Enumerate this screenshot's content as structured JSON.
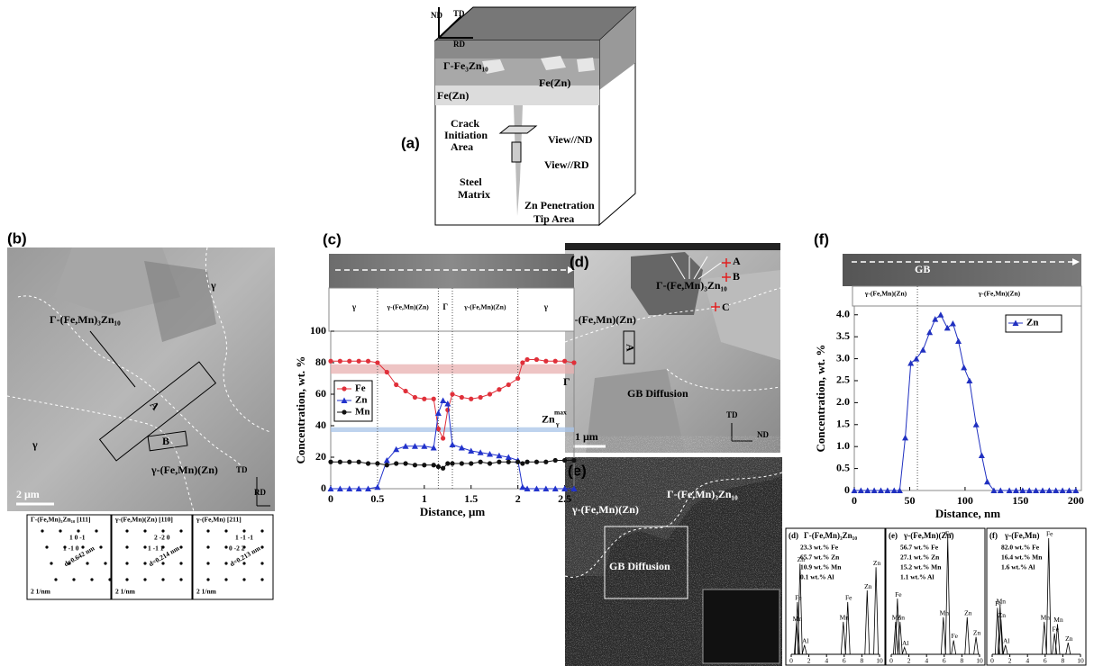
{
  "panel_a": {
    "label": "(a)",
    "nd": "ND",
    "td": "TD",
    "rd": "RD",
    "gamma_phase": "Γ-Fe₃Zn₁₀",
    "fezn_1": "Fe(Zn)",
    "fezn_2": "Fe(Zn)",
    "crack": [
      "Crack",
      "Initiation",
      "Area"
    ],
    "view_nd": "View//ND",
    "view_rd": "View//RD",
    "matrix": [
      "Steel",
      "Matrix"
    ],
    "tip": [
      "Zn Penetration",
      "Tip Area"
    ]
  },
  "panel_b": {
    "label": "(b)",
    "gamma_1": "γ",
    "gamma_2": "γ",
    "gamma_phase": "Γ-(Fe,Mn)₃Zn₁₀",
    "box_a": "A",
    "box_b": "B",
    "matrix_phase": "γ-(Fe,Mn)(Zn)",
    "td": "TD",
    "rd": "RD",
    "scale": "2 μm",
    "saed": [
      {
        "title": "Γ-(Fe,Mn)₃Zn₁₀ [111]",
        "scale": "2 1/nm",
        "spots": [
          "1 0 -1",
          "1 -1 0"
        ],
        "d": "d=0.642 nm"
      },
      {
        "title": "γ-(Fe,Mn)(Zn) [110]",
        "scale": "2 1/nm",
        "spots": [
          "2 -2 0",
          "1 -1 1"
        ],
        "d": "d=0.214 nm"
      },
      {
        "title": "γ-(Fe,Mn) [211]",
        "scale": "2 1/nm",
        "spots": [
          "1 -1 -1",
          "0 -2 2"
        ],
        "d": "d=0.213 nm"
      }
    ]
  },
  "panel_d": {
    "label": "(d)",
    "gamma_phase": "Γ-(Fe,Mn)₃Zn₁₀",
    "point_a": "A",
    "point_b": "B",
    "point_c": "C",
    "matrix_phase": "γ-(Fe,Mn)(Zn)",
    "box_a": "A",
    "gb": "GB Diffusion",
    "scale": "1 μm",
    "td": "TD",
    "nd": "ND"
  },
  "panel_e": {
    "label": "(e)",
    "gamma_phase": "Γ-(Fe,Mn)₃Zn₁₀",
    "matrix_phase": "γ-(Fe,Mn)(Zn)",
    "gb": "GB Diffusion"
  },
  "chart_data": [
    {
      "type": "line",
      "label": "(c)",
      "xlabel": "Distance, μm",
      "ylabel": "Concentration, wt. %",
      "phases": [
        "γ",
        "γ-(Fe,Mn)(Zn)",
        "Γ",
        "γ-(Fe,Mn)(Zn)",
        "γ"
      ],
      "boundaries": [
        0.5,
        1.15,
        1.3,
        2.0
      ],
      "bands": [
        {
          "label": "Γ",
          "range": [
            73,
            79
          ],
          "color": "#e8b0b0"
        },
        {
          "label": "Zn",
          "superscript": "max",
          "subscript": "γ",
          "range": [
            36,
            39
          ],
          "color": "#a8c4e8"
        }
      ],
      "x": [
        0,
        0.1,
        0.2,
        0.3,
        0.4,
        0.5,
        0.6,
        0.7,
        0.8,
        0.9,
        1.0,
        1.1,
        1.15,
        1.2,
        1.25,
        1.3,
        1.4,
        1.5,
        1.6,
        1.7,
        1.8,
        1.9,
        2.0,
        2.05,
        2.1,
        2.2,
        2.3,
        2.4,
        2.5,
        2.6
      ],
      "xlim": [
        0,
        2.6
      ],
      "xticks": [
        0,
        0.5,
        1,
        1.5,
        2,
        2.5
      ],
      "ylim": [
        0,
        100
      ],
      "yticks": [
        0,
        20,
        40,
        60,
        80,
        100
      ],
      "legend": "center left",
      "series": [
        {
          "name": "Fe",
          "color": "#e0303a",
          "marker": "circle",
          "values": [
            81,
            81,
            81,
            81,
            81,
            80,
            74,
            66,
            62,
            58,
            57,
            57,
            38,
            32,
            50,
            60,
            58,
            57,
            58,
            60,
            63,
            66,
            70,
            80,
            82,
            82,
            81,
            81,
            81,
            80
          ]
        },
        {
          "name": "Zn",
          "color": "#2233cc",
          "marker": "triangle",
          "values": [
            0,
            0,
            0,
            0,
            0,
            1,
            18,
            25,
            27,
            27,
            27,
            26,
            48,
            56,
            54,
            28,
            26,
            24,
            23,
            22,
            21,
            20,
            18,
            1,
            0,
            0,
            0,
            0,
            0,
            0
          ]
        },
        {
          "name": "Mn",
          "color": "#111111",
          "marker": "circle",
          "values": [
            17,
            17,
            17,
            17,
            16,
            16,
            15,
            16,
            16,
            15,
            15,
            15,
            14,
            13,
            16,
            16,
            16,
            16,
            17,
            16,
            17,
            17,
            17,
            16,
            17,
            17,
            17,
            18,
            18,
            18
          ]
        }
      ]
    },
    {
      "type": "line",
      "label": "(f)",
      "xlabel": "Distance, nm",
      "ylabel": "Concentration, wt. %",
      "strip_label": "GB",
      "phases": [
        "γ-(Fe,Mn)(Zn)",
        "γ-(Fe,Mn)(Zn)"
      ],
      "boundaries": [
        57
      ],
      "x": [
        0,
        6,
        12,
        18,
        24,
        30,
        36,
        41,
        46,
        51,
        56,
        62,
        68,
        73,
        78,
        84,
        89,
        94,
        99,
        104,
        110,
        115,
        120,
        126,
        132,
        140,
        146,
        152,
        158,
        164,
        170,
        176,
        182,
        188,
        194,
        200
      ],
      "xlim": [
        0,
        205
      ],
      "xticks": [
        0,
        50,
        100,
        150,
        200
      ],
      "ylim": [
        0,
        4.2
      ],
      "yticks": [
        0,
        0.5,
        {
          "value": 1,
          "label": "1.0"
        },
        1.5,
        {
          "value": 2,
          "label": "2.0"
        },
        2.5,
        {
          "value": 3,
          "label": "3.0"
        },
        3.5,
        {
          "value": 4,
          "label": "4.0"
        }
      ],
      "legend": "upper right",
      "series": [
        {
          "name": "Zn",
          "color": "#2030c0",
          "marker": "triangle",
          "values": [
            0,
            0,
            0,
            0,
            0,
            0,
            0,
            0,
            1.2,
            2.9,
            3.0,
            3.2,
            3.6,
            3.9,
            4.0,
            3.7,
            3.8,
            3.4,
            2.8,
            2.5,
            1.5,
            0.8,
            0.2,
            0,
            0,
            0,
            0,
            0,
            0,
            0,
            0,
            0,
            0,
            0,
            0,
            0
          ]
        }
      ]
    },
    {
      "type": "spectrum",
      "label": "(d)",
      "title": "Γ-(Fe,Mn)₃Zn₁₀",
      "composition": [
        "23.3 wt.% Fe",
        "65.7 wt.% Zn",
        "10.9 wt.% Mn",
        "0.1 wt.% Al"
      ],
      "xlim": [
        0,
        10
      ],
      "xticks": [
        0,
        2,
        4,
        6,
        8,
        10
      ],
      "peaks": [
        {
          "label": "Zn",
          "energy": 1.0,
          "height": 78
        },
        {
          "label": "Fe",
          "energy": 0.7,
          "height": 45
        },
        {
          "label": "Mn",
          "energy": 0.6,
          "height": 27
        },
        {
          "label": "Al",
          "energy": 1.5,
          "height": 8
        },
        {
          "label": "Mn",
          "energy": 5.9,
          "height": 28
        },
        {
          "label": "Fe",
          "energy": 6.4,
          "height": 45
        },
        {
          "label": "Zn",
          "energy": 8.6,
          "height": 55
        },
        {
          "label": "Zn",
          "energy": 9.6,
          "height": 75
        }
      ]
    },
    {
      "type": "spectrum",
      "label": "(e)",
      "title": "γ-(Fe,Mn)(Zn)",
      "composition": [
        "56.7 wt.% Fe",
        "27.1 wt.% Zn",
        "15.2 wt.% Mn",
        "1.1 wt.% Al"
      ],
      "xlim": [
        0,
        10
      ],
      "xticks": [
        0,
        2,
        4,
        6,
        8,
        10
      ],
      "peaks": [
        {
          "label": "Fe",
          "energy": 0.7,
          "height": 48
        },
        {
          "label": "Mn",
          "energy": 0.5,
          "height": 28
        },
        {
          "label": "Zn",
          "energy": 1.0,
          "height": 28
        },
        {
          "label": "Al",
          "energy": 1.5,
          "height": 6
        },
        {
          "label": "Mn",
          "energy": 5.9,
          "height": 32
        },
        {
          "label": "Fe",
          "energy": 6.4,
          "height": 100
        },
        {
          "label": "Fe",
          "energy": 7.06,
          "height": 12
        },
        {
          "label": "Zn",
          "energy": 8.6,
          "height": 32
        },
        {
          "label": "Zn",
          "energy": 9.6,
          "height": 15
        }
      ]
    },
    {
      "type": "spectrum",
      "label": "(f)",
      "title": "γ-(Fe,Mn)",
      "composition": [
        "82.0 wt.% Fe",
        "16.4 wt.% Mn",
        "1.6 wt.% Al"
      ],
      "xlim": [
        0,
        10
      ],
      "xticks": [
        0,
        2,
        4,
        6,
        8,
        10
      ],
      "peaks": [
        {
          "label": "Fe",
          "energy": 0.6,
          "height": 40
        },
        {
          "label": "Mn",
          "energy": 0.9,
          "height": 42
        },
        {
          "label": "Zn",
          "energy": 1.0,
          "height": 30
        },
        {
          "label": "Al",
          "energy": 1.5,
          "height": 8
        },
        {
          "label": "Mn",
          "energy": 5.9,
          "height": 28
        },
        {
          "label": "Fe",
          "energy": 6.4,
          "height": 100
        },
        {
          "label": "Fe",
          "energy": 7.06,
          "height": 18
        },
        {
          "label": "Mn",
          "energy": 7.4,
          "height": 26
        },
        {
          "label": "Zn",
          "energy": 8.6,
          "height": 10
        }
      ]
    }
  ]
}
